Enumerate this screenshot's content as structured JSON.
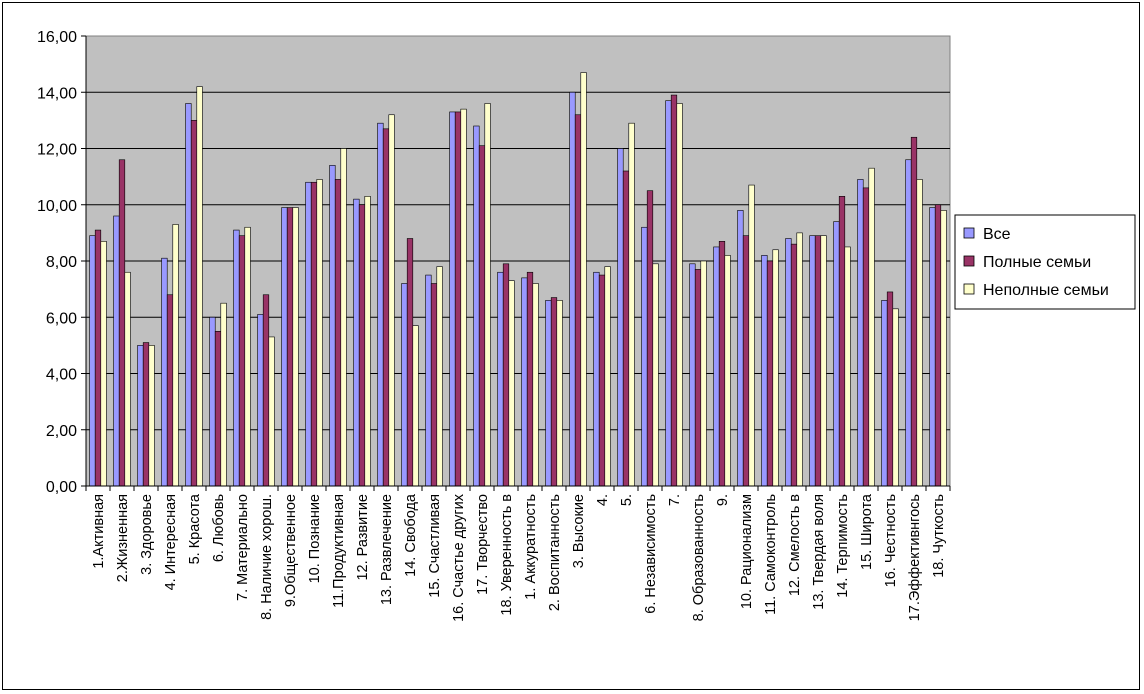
{
  "chart_data": {
    "type": "bar",
    "title": "",
    "xlabel": "",
    "ylabel": "",
    "ylim": [
      0,
      16
    ],
    "y_ticks": [
      "0,00",
      "2,00",
      "4,00",
      "6,00",
      "8,00",
      "10,00",
      "12,00",
      "14,00",
      "16,00"
    ],
    "grid": true,
    "legend_position": "right",
    "categories": [
      "1.Активная",
      "2.Жизненная",
      "3. Здоровье",
      "4. Интересная",
      "5. Красота",
      "6. Любовь",
      "7. Материально",
      "8. Наличие хорош.",
      "9.Общественное",
      "10. Познание",
      "11.Продуктивная",
      "12. Развитие",
      "13. Развлечение",
      "14. Свобода",
      "15. Счастливая",
      "16. Счастье других",
      "17. Творчество",
      "18. Уверенность в",
      "1. Аккуратность",
      "2. Воспитанность",
      "3. Высокие",
      "4.",
      "5.",
      "6. Независимость",
      "7.",
      "8. Образованность",
      "9.",
      "10. Рационализм",
      "11. Самоконтроль",
      "12. Смелость в",
      "13. Твердая воля",
      "14. Терпимость",
      "15. Широта",
      "16. Честность",
      "17.Эффективнгось",
      "18. Чуткость"
    ],
    "series": [
      {
        "name": "Все",
        "color": "#9999ff",
        "values": [
          8.9,
          9.6,
          5.0,
          8.1,
          13.6,
          6.0,
          9.1,
          6.1,
          9.9,
          10.8,
          11.4,
          10.2,
          12.9,
          7.2,
          7.5,
          13.3,
          12.8,
          7.6,
          7.4,
          6.6,
          14.0,
          7.6,
          12.0,
          9.2,
          13.7,
          7.9,
          8.5,
          9.8,
          8.2,
          8.8,
          8.9,
          9.4,
          10.9,
          6.6,
          11.6,
          9.9
        ]
      },
      {
        "name": "Полные семьи",
        "color": "#993366",
        "values": [
          9.1,
          11.6,
          5.1,
          6.8,
          13.0,
          5.5,
          8.9,
          6.8,
          9.9,
          10.8,
          10.9,
          10.0,
          12.7,
          8.8,
          7.2,
          13.3,
          12.1,
          7.9,
          7.6,
          6.7,
          13.2,
          7.5,
          11.2,
          10.5,
          13.9,
          7.7,
          8.7,
          8.9,
          8.0,
          8.6,
          8.9,
          10.3,
          10.6,
          6.9,
          12.4,
          10.0
        ]
      },
      {
        "name": "Неполные семьи",
        "color": "#ffffcc",
        "values": [
          8.7,
          7.6,
          5.0,
          9.3,
          14.2,
          6.5,
          9.2,
          5.3,
          9.9,
          10.9,
          12.0,
          10.3,
          13.2,
          5.7,
          7.8,
          13.4,
          13.6,
          7.3,
          7.2,
          6.6,
          14.7,
          7.8,
          12.9,
          7.9,
          13.6,
          8.0,
          8.2,
          10.7,
          8.4,
          9.0,
          8.9,
          8.5,
          11.3,
          6.3,
          10.9,
          9.8
        ]
      }
    ]
  }
}
